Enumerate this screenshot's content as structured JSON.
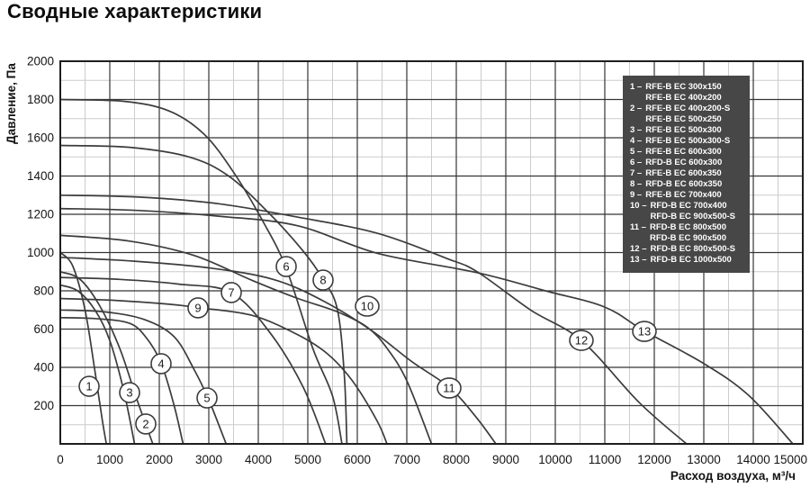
{
  "page": {
    "title": "Сводные характеристики"
  },
  "colors": {
    "background": "#ffffff",
    "title_text": "#0d0d0d",
    "curve": "#3c3c3c",
    "grid_major": "#353535",
    "grid_minor": "#cccccc",
    "plot_border": "#1e1e1e",
    "tick_text": "#141414",
    "legend_bg": "#474747",
    "legend_text": "#ffffff",
    "marker_fill": "#ffffff",
    "marker_stroke": "#3c3c3c"
  },
  "chart_data": {
    "type": "line",
    "title": "Сводные характеристики",
    "xlabel": "Расход воздуха, м³/ч",
    "ylabel": "Давление, Па",
    "xlim": [
      0,
      15000
    ],
    "ylim": [
      0,
      2000
    ],
    "x_ticks": [
      0,
      1000,
      2000,
      3000,
      4000,
      5000,
      6000,
      7000,
      8000,
      9000,
      10000,
      11000,
      12000,
      13000,
      14000,
      15000
    ],
    "y_ticks": [
      200,
      400,
      600,
      800,
      1000,
      1200,
      1400,
      1600,
      1800,
      2000
    ],
    "x_minor_step": 500,
    "y_minor_step": 100,
    "grid": {
      "major": true,
      "minor": true
    },
    "legend_position": "top-right",
    "series": [
      {
        "num": "1",
        "models": [
          "RFE-B EC 300x150",
          "RFE-B EC 400x200"
        ],
        "label_x": 582,
        "label_y": 301,
        "points": [
          [
            0,
            1000
          ],
          [
            250,
            930
          ],
          [
            500,
            700
          ],
          [
            700,
            380
          ],
          [
            850,
            120
          ],
          [
            930,
            0
          ]
        ]
      },
      {
        "num": "2",
        "models": [
          "RFE-B EC 400x200-S",
          "RFE-B EC 500x250"
        ],
        "label_x": 1727,
        "label_y": 104,
        "points": [
          [
            0,
            900
          ],
          [
            400,
            860
          ],
          [
            800,
            720
          ],
          [
            1200,
            500
          ],
          [
            1550,
            230
          ],
          [
            1870,
            0
          ]
        ]
      },
      {
        "num": "3",
        "models": [
          "RFE-B EC 500x300"
        ],
        "label_x": 1400,
        "label_y": 268,
        "points": [
          [
            0,
            830
          ],
          [
            350,
            800
          ],
          [
            700,
            700
          ],
          [
            1000,
            540
          ],
          [
            1280,
            280
          ],
          [
            1500,
            0
          ]
        ]
      },
      {
        "num": "4",
        "models": [
          "RFE-B EC 500x300-S"
        ],
        "label_x": 2036,
        "label_y": 419,
        "points": [
          [
            0,
            660
          ],
          [
            700,
            655
          ],
          [
            1400,
            630
          ],
          [
            1750,
            550
          ],
          [
            2040,
            420
          ],
          [
            2300,
            200
          ],
          [
            2480,
            0
          ]
        ]
      },
      {
        "num": "5",
        "models": [
          "RFE-B EC 600x300"
        ],
        "label_x": 2964,
        "label_y": 240,
        "points": [
          [
            0,
            700
          ],
          [
            900,
            690
          ],
          [
            1700,
            650
          ],
          [
            2300,
            560
          ],
          [
            2700,
            390
          ],
          [
            3000,
            230
          ],
          [
            3350,
            0
          ]
        ]
      },
      {
        "num": "6",
        "models": [
          "RFD-B EC 600x300"
        ],
        "label_x": 4564,
        "label_y": 927,
        "points": [
          [
            0,
            1800
          ],
          [
            1300,
            1790
          ],
          [
            2200,
            1740
          ],
          [
            2900,
            1620
          ],
          [
            3500,
            1420
          ],
          [
            4100,
            1160
          ],
          [
            4560,
            920
          ],
          [
            5100,
            500
          ],
          [
            5500,
            250
          ],
          [
            5690,
            0
          ]
        ]
      },
      {
        "num": "7",
        "models": [
          "RFE-B EC 600x350"
        ],
        "label_x": 3455,
        "label_y": 791,
        "points": [
          [
            0,
            870
          ],
          [
            1200,
            860
          ],
          [
            2400,
            835
          ],
          [
            3455,
            790
          ],
          [
            4240,
            580
          ],
          [
            4900,
            300
          ],
          [
            5360,
            0
          ]
        ]
      },
      {
        "num": "8",
        "models": [
          "RFD-B EC 600x350"
        ],
        "label_x": 5309,
        "label_y": 856,
        "points": [
          [
            0,
            1560
          ],
          [
            1400,
            1550
          ],
          [
            2600,
            1500
          ],
          [
            3400,
            1400
          ],
          [
            4200,
            1210
          ],
          [
            4900,
            1010
          ],
          [
            5310,
            860
          ],
          [
            5600,
            700
          ],
          [
            5740,
            350
          ],
          [
            5790,
            0
          ]
        ]
      },
      {
        "num": "9",
        "models": [
          "RFE-B EC 700x400"
        ],
        "label_x": 2782,
        "label_y": 711,
        "points": [
          [
            0,
            760
          ],
          [
            1100,
            750
          ],
          [
            2200,
            730
          ],
          [
            2780,
            712
          ],
          [
            3870,
            672
          ],
          [
            4800,
            570
          ],
          [
            5400,
            470
          ],
          [
            5900,
            330
          ],
          [
            6400,
            120
          ],
          [
            6600,
            0
          ]
        ]
      },
      {
        "num": "10",
        "models": [
          "RFD-B EC 700x400",
          "RFD-B EC 900x500-S"
        ],
        "label_x": 6200,
        "label_y": 720,
        "points": [
          [
            0,
            1090
          ],
          [
            1400,
            1060
          ],
          [
            2700,
            985
          ],
          [
            3870,
            855
          ],
          [
            4800,
            760
          ],
          [
            5600,
            690
          ],
          [
            6200,
            610
          ],
          [
            6600,
            500
          ],
          [
            7000,
            330
          ],
          [
            7500,
            0
          ]
        ]
      },
      {
        "num": "11",
        "models": [
          "RFD-B EC 800x500",
          "RFD-B EC 900x500"
        ],
        "label_x": 7855,
        "label_y": 292,
        "points": [
          [
            0,
            975
          ],
          [
            1500,
            955
          ],
          [
            3000,
            920
          ],
          [
            4300,
            860
          ],
          [
            5330,
            745
          ],
          [
            6300,
            590
          ],
          [
            7100,
            430
          ],
          [
            7860,
            295
          ],
          [
            8400,
            140
          ],
          [
            8800,
            0
          ]
        ]
      },
      {
        "num": "12",
        "models": [
          "RFD-B EC 800x500-S"
        ],
        "label_x": 10527,
        "label_y": 541,
        "points": [
          [
            0,
            1300
          ],
          [
            1600,
            1290
          ],
          [
            3200,
            1255
          ],
          [
            4800,
            1185
          ],
          [
            6420,
            1100
          ],
          [
            7800,
            970
          ],
          [
            8420,
            900
          ],
          [
            9500,
            700
          ],
          [
            10530,
            540
          ],
          [
            11700,
            215
          ],
          [
            12650,
            0
          ]
        ]
      },
      {
        "num": "13",
        "models": [
          "RFD-B EC 1000x500"
        ],
        "label_x": 11800,
        "label_y": 588,
        "points": [
          [
            0,
            1230
          ],
          [
            1600,
            1220
          ],
          [
            3200,
            1190
          ],
          [
            4800,
            1140
          ],
          [
            6420,
            995
          ],
          [
            8420,
            895
          ],
          [
            9800,
            800
          ],
          [
            11000,
            715
          ],
          [
            11800,
            590
          ],
          [
            13000,
            420
          ],
          [
            13900,
            255
          ],
          [
            14800,
            0
          ]
        ]
      }
    ]
  }
}
